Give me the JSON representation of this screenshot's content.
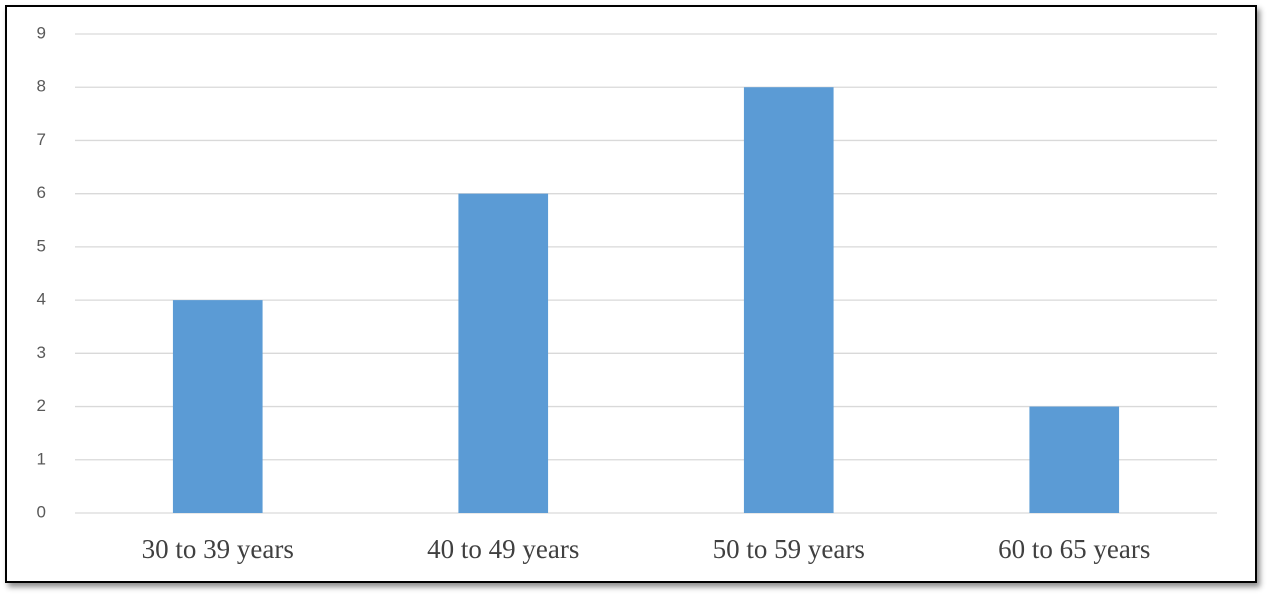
{
  "chart_data": {
    "type": "bar",
    "categories": [
      "30 to 39 years",
      "40 to 49 years",
      "50 to 59 years",
      "60 to 65 years"
    ],
    "values": [
      4,
      6,
      8,
      2
    ],
    "color": "#5b9bd5",
    "ylim": [
      0,
      9
    ],
    "yticks": [
      0,
      1,
      2,
      3,
      4,
      5,
      6,
      7,
      8,
      9
    ],
    "grid": true
  }
}
